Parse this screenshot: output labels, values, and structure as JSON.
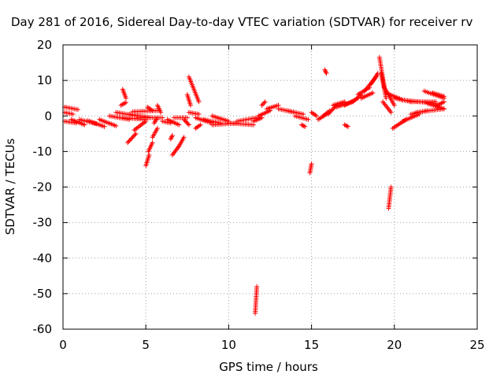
{
  "chart_data": {
    "type": "scatter",
    "title": "Day 281 of 2016, Sidereal Day-to-day VTEC variation (SDTVAR) for receiver rv",
    "xlabel": "GPS time / hours",
    "ylabel": "SDTVAR / TECUs",
    "xlim": [
      0,
      25
    ],
    "ylim": [
      -60,
      20
    ],
    "xticks": [
      "0",
      "5",
      "10",
      "15",
      "20",
      "25"
    ],
    "yticks": [
      "20",
      "10",
      "0",
      "-10",
      "-20",
      "-30",
      "-40",
      "-50",
      "-60"
    ],
    "grid": true,
    "marker": "plus",
    "color": "#ff0000",
    "segments": [
      [
        0.1,
        2.5,
        0.9,
        1.8
      ],
      [
        0.1,
        1.0,
        0.6,
        0.5
      ],
      [
        0.1,
        -1.5,
        0.8,
        -2.0
      ],
      [
        0.5,
        -1.0,
        1.3,
        -2.5
      ],
      [
        1.0,
        -1.0,
        2.0,
        -2.2
      ],
      [
        1.5,
        -1.3,
        2.5,
        -3.0
      ],
      [
        2.2,
        -1.0,
        3.2,
        -2.8
      ],
      [
        2.8,
        0.0,
        4.0,
        -1.0
      ],
      [
        3.2,
        1.0,
        4.5,
        0.0
      ],
      [
        3.6,
        -0.5,
        5.0,
        -1.0
      ],
      [
        3.5,
        3.0,
        3.8,
        3.8
      ],
      [
        3.6,
        7.5,
        3.8,
        5.0
      ],
      [
        4.0,
        0.5,
        5.3,
        -0.5
      ],
      [
        4.2,
        1.2,
        5.7,
        1.5
      ],
      [
        4.5,
        -0.5,
        6.0,
        -0.5
      ],
      [
        3.9,
        -7.5,
        4.4,
        -5.0
      ],
      [
        4.3,
        -4.0,
        5.0,
        -1.5
      ],
      [
        5.0,
        -14.0,
        5.2,
        -11.0
      ],
      [
        5.15,
        -10.0,
        5.4,
        -7.5
      ],
      [
        5.4,
        -6.0,
        5.7,
        -3.5
      ],
      [
        5.1,
        2.5,
        5.4,
        1.5
      ],
      [
        5.5,
        -2.0,
        5.7,
        -0.5
      ],
      [
        5.7,
        3.0,
        5.9,
        1.0
      ],
      [
        6.0,
        -1.5,
        6.5,
        -2.0
      ],
      [
        6.3,
        -1.0,
        7.0,
        -2.5
      ],
      [
        6.7,
        -0.5,
        7.5,
        -0.5
      ],
      [
        6.5,
        -6.5,
        6.6,
        -5.5
      ],
      [
        6.6,
        -11.0,
        7.0,
        -8.5
      ],
      [
        7.0,
        -8.5,
        7.3,
        -6.0
      ],
      [
        7.6,
        11.0,
        8.2,
        4.0
      ],
      [
        7.5,
        6.0,
        7.7,
        3.0
      ],
      [
        7.3,
        -1.0,
        7.6,
        -2.5
      ],
      [
        7.6,
        1.0,
        8.2,
        0.5
      ],
      [
        8.0,
        -0.5,
        9.0,
        -2.0
      ],
      [
        8.0,
        -3.5,
        8.3,
        -2.5
      ],
      [
        8.5,
        -1.0,
        9.5,
        -2.0
      ],
      [
        9.0,
        0.0,
        10.0,
        -1.5
      ],
      [
        9.0,
        -2.5,
        10.5,
        -2.0
      ],
      [
        10.0,
        -2.0,
        11.5,
        -2.5
      ],
      [
        10.5,
        -1.5,
        11.7,
        -0.5
      ],
      [
        11.5,
        -1.5,
        12.0,
        -0.5
      ],
      [
        11.8,
        0.0,
        12.5,
        1.5
      ],
      [
        12.3,
        2.0,
        13.0,
        3.0
      ],
      [
        12.0,
        3.0,
        12.2,
        4.0
      ],
      [
        13.0,
        2.0,
        14.0,
        1.0
      ],
      [
        13.5,
        1.5,
        14.5,
        0.5
      ],
      [
        14.0,
        0.0,
        14.8,
        -1.0
      ],
      [
        14.4,
        -2.5,
        14.6,
        -3.0
      ],
      [
        14.9,
        -16.0,
        15.0,
        -13.5
      ],
      [
        15.0,
        1.0,
        15.3,
        0.0
      ],
      [
        15.4,
        -1.0,
        15.9,
        0.5
      ],
      [
        15.7,
        0.0,
        16.1,
        1.5
      ],
      [
        15.8,
        13.0,
        15.9,
        12.0
      ],
      [
        16.0,
        0.5,
        16.5,
        3.0
      ],
      [
        16.3,
        3.0,
        17.0,
        4.0
      ],
      [
        16.5,
        2.5,
        17.5,
        4.0
      ],
      [
        17.0,
        3.0,
        17.8,
        5.0
      ],
      [
        17.0,
        -2.5,
        17.2,
        -3.0
      ],
      [
        17.5,
        4.0,
        18.0,
        6.0
      ],
      [
        17.8,
        6.0,
        18.5,
        8.0
      ],
      [
        18.2,
        7.0,
        18.9,
        11.0
      ],
      [
        18.0,
        5.0,
        18.7,
        6.5
      ],
      [
        18.6,
        9.0,
        19.0,
        12.0
      ],
      [
        19.1,
        16.5,
        19.4,
        8.0
      ],
      [
        19.2,
        12.0,
        19.5,
        5.0
      ],
      [
        19.4,
        8.0,
        20.0,
        3.0
      ],
      [
        19.3,
        4.0,
        19.8,
        1.0
      ],
      [
        19.5,
        6.5,
        20.5,
        4.5
      ],
      [
        20.0,
        5.0,
        21.0,
        4.0
      ],
      [
        20.5,
        4.5,
        22.5,
        3.5
      ],
      [
        21.0,
        4.0,
        22.5,
        4.0
      ],
      [
        19.9,
        -3.5,
        20.7,
        -1.0
      ],
      [
        20.5,
        -1.5,
        21.5,
        0.5
      ],
      [
        21.0,
        0.5,
        22.0,
        1.5
      ],
      [
        21.3,
        1.0,
        23.0,
        2.0
      ],
      [
        22.0,
        3.5,
        23.0,
        2.0
      ],
      [
        21.8,
        7.0,
        23.0,
        5.0
      ],
      [
        22.3,
        6.5,
        23.0,
        5.5
      ],
      [
        22.6,
        3.0,
        23.0,
        4.0
      ],
      [
        19.65,
        -26.0,
        19.8,
        -20.0
      ],
      [
        11.6,
        -55.5,
        11.7,
        -48.0
      ]
    ]
  }
}
